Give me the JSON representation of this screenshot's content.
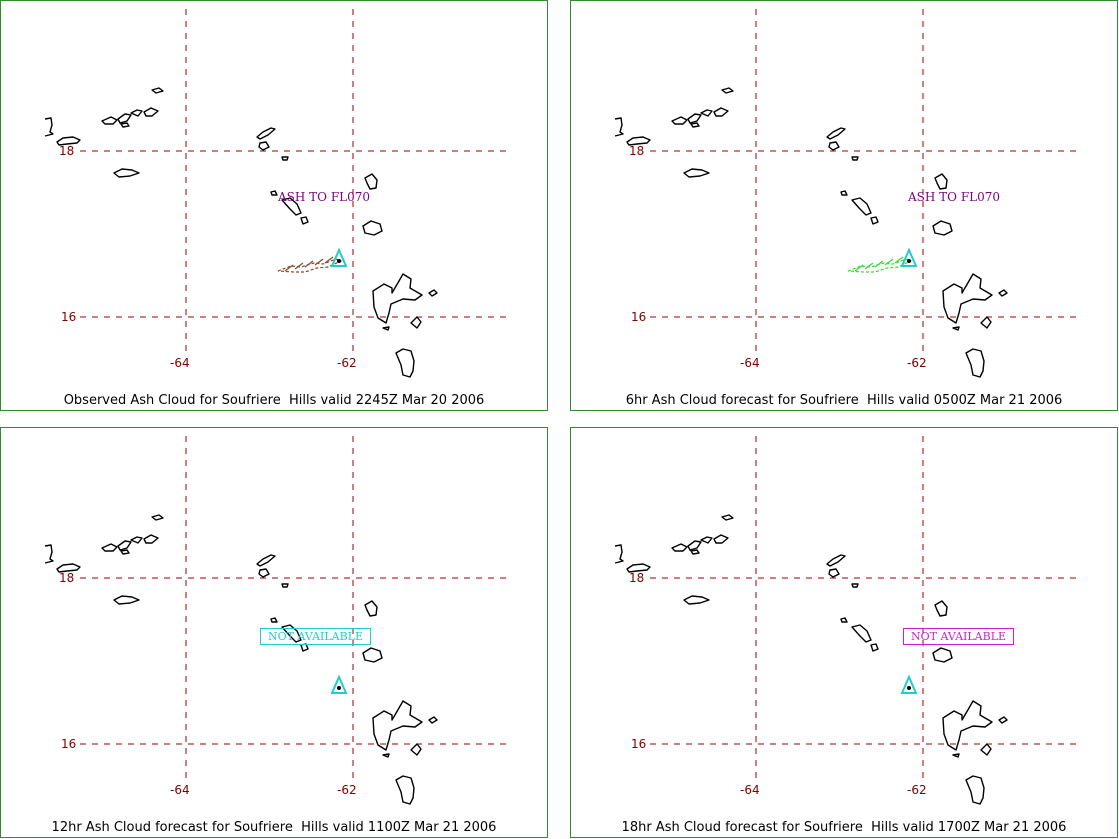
{
  "panels": [
    {
      "caption": "Observed Ash Cloud for Soufriere  Hills valid 2245Z Mar 20 2006",
      "annotation": "ASH TO FL070",
      "annotation_style": "text",
      "annotation_color": "#800080",
      "ash_color": "#8b4a2b"
    },
    {
      "caption": "6hr Ash Cloud forecast for Soufriere  Hills valid 0500Z Mar 21 2006",
      "annotation": "ASH TO FL070",
      "annotation_style": "text",
      "annotation_color": "#800080",
      "ash_color": "#33dd33"
    },
    {
      "caption": "12hr Ash Cloud forecast for Soufriere  Hills valid 1100Z Mar 21 2006",
      "annotation": "NOT AVAILABLE",
      "annotation_style": "box",
      "annotation_color": "#22cccc",
      "ash_color": ""
    },
    {
      "caption": "18hr Ash Cloud forecast for Soufriere  Hills valid 1700Z Mar 21 2006",
      "annotation": "NOT AVAILABLE",
      "annotation_style": "box",
      "annotation_color": "#cc22cc",
      "ash_color": ""
    }
  ],
  "grid": {
    "lat_labels": [
      "18",
      "16"
    ],
    "lon_labels": [
      "-64",
      "-62"
    ],
    "line_color": "#990000"
  },
  "volcano_marker_color": "#22cccc",
  "volcano_icon": "triangle-volcano-icon"
}
